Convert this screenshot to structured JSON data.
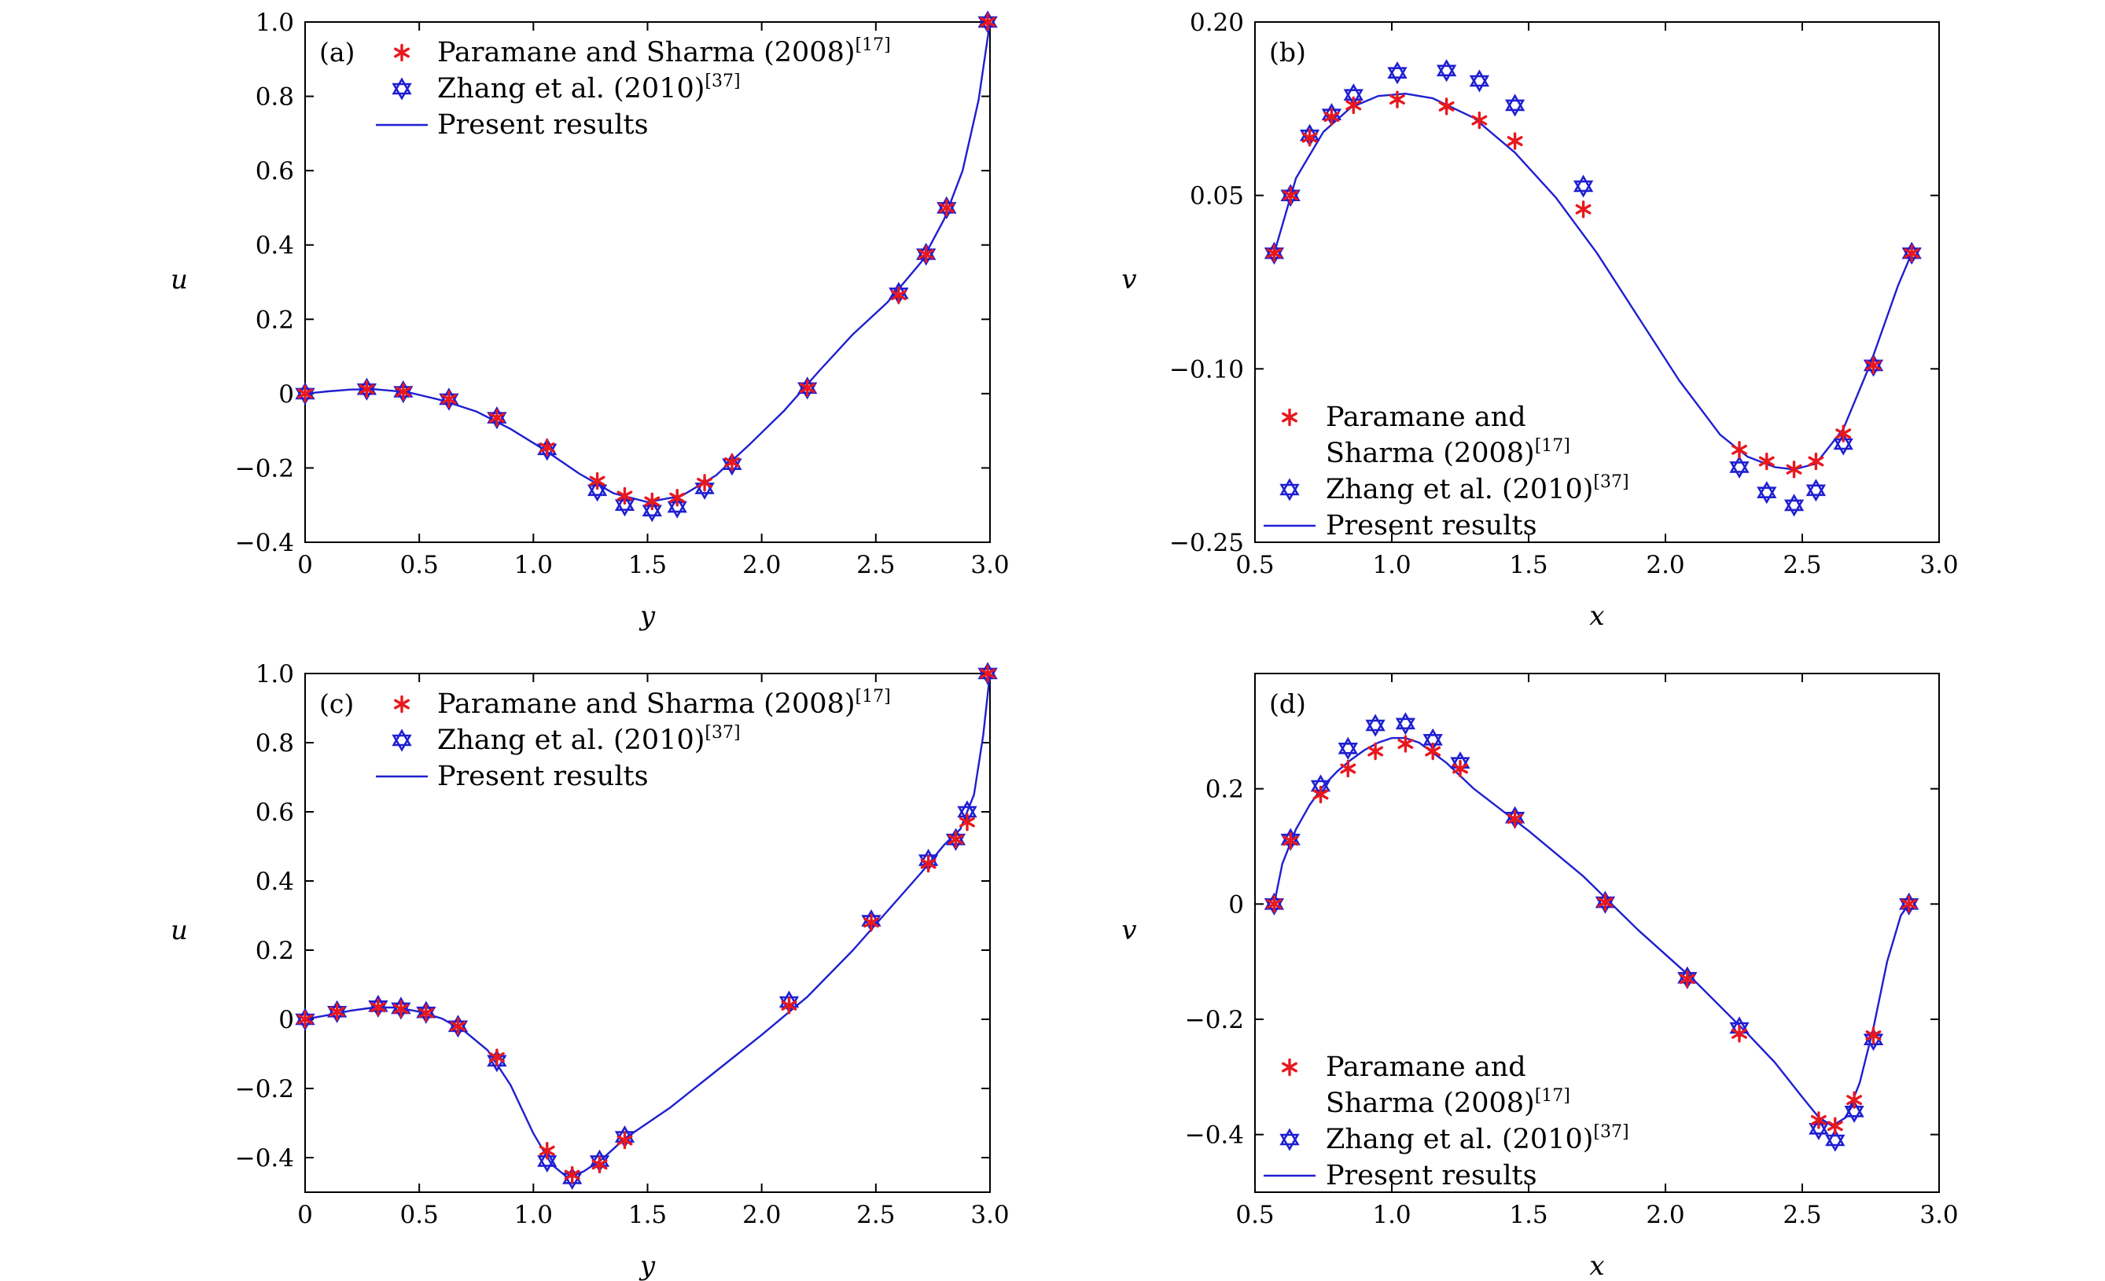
{
  "colors": {
    "line": "#1f1fd1",
    "paramane_marker": "#e8181e",
    "zhang_marker": "#1f1fd1",
    "axis": "#000000"
  },
  "chart_data": [
    {
      "id": "a",
      "panel_label": "(a)",
      "type": "line+scatter",
      "xlabel": "y",
      "ylabel": "u",
      "xlim": [
        0,
        3.0
      ],
      "ylim": [
        -0.4,
        1.0
      ],
      "xticks": [
        0,
        0.5,
        1.0,
        1.5,
        2.0,
        2.5,
        3.0
      ],
      "xtick_labels": [
        "0",
        "0.5",
        "1.0",
        "1.5",
        "2.0",
        "2.5",
        "3.0"
      ],
      "yticks": [
        -0.4,
        -0.2,
        0,
        0.2,
        0.4,
        0.6,
        0.8,
        1.0
      ],
      "ytick_labels": [
        "−0.4",
        "−0.2",
        "0",
        "0.2",
        "0.4",
        "0.6",
        "0.8",
        "1.0"
      ],
      "legend": {
        "position": "top-left",
        "entries": [
          {
            "marker": "asterisk",
            "text_lines": [
              "Paramane and Sharma (2008)"
            ],
            "ref": "[17]"
          },
          {
            "marker": "star",
            "text_lines": [
              "Zhang et al. (2010)"
            ],
            "ref": "[37]"
          },
          {
            "marker": "line",
            "text_lines": [
              "Present results"
            ],
            "ref": ""
          }
        ]
      },
      "series": [
        {
          "name": "Paramane and Sharma (2008)",
          "marker": "asterisk",
          "x": [
            0,
            0.27,
            0.43,
            0.63,
            0.84,
            1.06,
            1.28,
            1.4,
            1.52,
            1.63,
            1.75,
            1.87,
            2.2,
            2.6,
            2.72,
            2.81,
            2.99
          ],
          "y": [
            0,
            0.012,
            0.005,
            -0.015,
            -0.065,
            -0.145,
            -0.235,
            -0.275,
            -0.29,
            -0.28,
            -0.24,
            -0.185,
            0.015,
            0.265,
            0.375,
            0.5,
            1.0
          ]
        },
        {
          "name": "Zhang et al. (2010)",
          "marker": "star",
          "x": [
            0,
            0.27,
            0.43,
            0.63,
            0.84,
            1.06,
            1.28,
            1.4,
            1.52,
            1.63,
            1.75,
            1.87,
            2.2,
            2.6,
            2.72,
            2.81,
            2.99
          ],
          "y": [
            0,
            0.012,
            0.005,
            -0.015,
            -0.065,
            -0.15,
            -0.26,
            -0.3,
            -0.315,
            -0.305,
            -0.255,
            -0.19,
            0.015,
            0.27,
            0.375,
            0.5,
            1.0
          ]
        },
        {
          "name": "Present results",
          "marker": "line",
          "x": [
            0,
            0.1,
            0.2,
            0.3,
            0.45,
            0.6,
            0.75,
            0.9,
            1.05,
            1.2,
            1.35,
            1.5,
            1.65,
            1.8,
            1.95,
            2.1,
            2.25,
            2.4,
            2.55,
            2.7,
            2.8,
            2.88,
            2.95,
            3.0
          ],
          "y": [
            0,
            0.006,
            0.011,
            0.012,
            0.004,
            -0.018,
            -0.048,
            -0.095,
            -0.152,
            -0.215,
            -0.268,
            -0.292,
            -0.275,
            -0.22,
            -0.135,
            -0.045,
            0.06,
            0.16,
            0.245,
            0.355,
            0.47,
            0.6,
            0.79,
            1.0
          ]
        }
      ]
    },
    {
      "id": "b",
      "panel_label": "(b)",
      "type": "line+scatter",
      "xlabel": "x",
      "ylabel": "v",
      "xlim": [
        0.5,
        3.0
      ],
      "ylim": [
        -0.25,
        0.2
      ],
      "xticks": [
        0.5,
        1.0,
        1.5,
        2.0,
        2.5,
        3.0
      ],
      "xtick_labels": [
        "0.5",
        "1.0",
        "1.5",
        "2.0",
        "2.5",
        "3.0"
      ],
      "yticks": [
        -0.25,
        -0.1,
        0.05,
        0.2
      ],
      "ytick_labels": [
        "−0.25",
        "−0.10",
        "0.05",
        "0.20"
      ],
      "legend": {
        "position": "bottom-left",
        "entries": [
          {
            "marker": "asterisk",
            "text_lines": [
              "Paramane and",
              "Sharma (2008)"
            ],
            "ref": "[17]"
          },
          {
            "marker": "star",
            "text_lines": [
              "Zhang et al. (2010)"
            ],
            "ref": "[37]"
          },
          {
            "marker": "line",
            "text_lines": [
              "Present results"
            ],
            "ref": ""
          }
        ]
      },
      "series": [
        {
          "name": "Paramane and Sharma (2008)",
          "marker": "asterisk",
          "x": [
            0.57,
            0.63,
            0.7,
            0.78,
            0.86,
            1.02,
            1.2,
            1.32,
            1.45,
            1.7,
            2.27,
            2.37,
            2.47,
            2.55,
            2.65,
            2.76,
            2.9
          ],
          "y": [
            0.0,
            0.05,
            0.1,
            0.118,
            0.128,
            0.133,
            0.127,
            0.115,
            0.097,
            0.038,
            -0.17,
            -0.18,
            -0.187,
            -0.18,
            -0.156,
            -0.097,
            0.0
          ]
        },
        {
          "name": "Zhang et al. (2010)",
          "marker": "star",
          "x": [
            0.57,
            0.63,
            0.7,
            0.78,
            0.86,
            1.02,
            1.2,
            1.32,
            1.45,
            1.7,
            2.27,
            2.37,
            2.47,
            2.55,
            2.65,
            2.76,
            2.9
          ],
          "y": [
            0.0,
            0.05,
            0.102,
            0.12,
            0.137,
            0.156,
            0.158,
            0.149,
            0.128,
            0.058,
            -0.185,
            -0.207,
            -0.218,
            -0.205,
            -0.165,
            -0.097,
            0.0
          ]
        },
        {
          "name": "Present results",
          "marker": "line",
          "x": [
            0.57,
            0.65,
            0.75,
            0.85,
            0.95,
            1.05,
            1.15,
            1.3,
            1.45,
            1.6,
            1.75,
            1.9,
            2.05,
            2.2,
            2.3,
            2.4,
            2.47,
            2.55,
            2.65,
            2.75,
            2.85,
            2.9
          ],
          "y": [
            0.0,
            0.065,
            0.105,
            0.126,
            0.136,
            0.138,
            0.134,
            0.117,
            0.087,
            0.048,
            0.0,
            -0.055,
            -0.11,
            -0.157,
            -0.176,
            -0.185,
            -0.187,
            -0.182,
            -0.152,
            -0.095,
            -0.028,
            0.0
          ]
        }
      ]
    },
    {
      "id": "c",
      "panel_label": "(c)",
      "type": "line+scatter",
      "xlabel": "y",
      "ylabel": "u",
      "xlim": [
        0,
        3.0
      ],
      "ylim": [
        -0.5,
        1.0
      ],
      "xticks": [
        0,
        0.5,
        1.0,
        1.5,
        2.0,
        2.5,
        3.0
      ],
      "xtick_labels": [
        "0",
        "0.5",
        "1.0",
        "1.5",
        "2.0",
        "2.5",
        "3.0"
      ],
      "yticks": [
        -0.4,
        -0.2,
        0,
        0.2,
        0.4,
        0.6,
        0.8,
        1.0
      ],
      "ytick_labels": [
        "−0.4",
        "−0.2",
        "0",
        "0.2",
        "0.4",
        "0.6",
        "0.8",
        "1.0"
      ],
      "legend": {
        "position": "top-left",
        "entries": [
          {
            "marker": "asterisk",
            "text_lines": [
              "Paramane and Sharma (2008)"
            ],
            "ref": "[17]"
          },
          {
            "marker": "star",
            "text_lines": [
              "Zhang et al. (2010)"
            ],
            "ref": "[37]"
          },
          {
            "marker": "line",
            "text_lines": [
              "Present results"
            ],
            "ref": ""
          }
        ]
      },
      "series": [
        {
          "name": "Paramane and Sharma (2008)",
          "marker": "asterisk",
          "x": [
            0,
            0.14,
            0.32,
            0.42,
            0.53,
            0.67,
            0.84,
            1.06,
            1.17,
            1.29,
            1.4,
            2.12,
            2.48,
            2.73,
            2.85,
            2.9,
            2.99
          ],
          "y": [
            0,
            0.022,
            0.035,
            0.03,
            0.018,
            -0.02,
            -0.11,
            -0.38,
            -0.45,
            -0.42,
            -0.35,
            0.04,
            0.28,
            0.45,
            0.52,
            0.57,
            1.0
          ]
        },
        {
          "name": "Zhang et al. (2010)",
          "marker": "star",
          "x": [
            0,
            0.14,
            0.32,
            0.42,
            0.53,
            0.67,
            0.84,
            1.06,
            1.17,
            1.29,
            1.4,
            2.12,
            2.48,
            2.73,
            2.85,
            2.9,
            2.99
          ],
          "y": [
            0,
            0.022,
            0.038,
            0.032,
            0.02,
            -0.02,
            -0.12,
            -0.41,
            -0.46,
            -0.41,
            -0.34,
            0.05,
            0.285,
            0.46,
            0.52,
            0.6,
            1.0
          ]
        },
        {
          "name": "Present results",
          "marker": "line",
          "x": [
            0,
            0.1,
            0.2,
            0.3,
            0.4,
            0.5,
            0.6,
            0.7,
            0.8,
            0.9,
            1.0,
            1.08,
            1.15,
            1.22,
            1.3,
            1.4,
            1.6,
            1.8,
            2.0,
            2.2,
            2.4,
            2.6,
            2.7,
            2.8,
            2.87,
            2.93,
            2.97,
            3.0
          ],
          "y": [
            0,
            0.012,
            0.025,
            0.034,
            0.034,
            0.022,
            0.002,
            -0.035,
            -0.09,
            -0.19,
            -0.33,
            -0.42,
            -0.458,
            -0.44,
            -0.405,
            -0.345,
            -0.255,
            -0.15,
            -0.045,
            0.065,
            0.2,
            0.35,
            0.425,
            0.505,
            0.55,
            0.65,
            0.82,
            1.0
          ]
        }
      ]
    },
    {
      "id": "d",
      "panel_label": "(d)",
      "type": "line+scatter",
      "xlabel": "x",
      "ylabel": "v",
      "xlim": [
        0.5,
        3.0
      ],
      "ylim": [
        -0.5,
        0.4
      ],
      "xticks": [
        0.5,
        1.0,
        1.5,
        2.0,
        2.5,
        3.0
      ],
      "xtick_labels": [
        "0.5",
        "1.0",
        "1.5",
        "2.0",
        "2.5",
        "3.0"
      ],
      "yticks": [
        -0.4,
        -0.2,
        0,
        0.2
      ],
      "ytick_labels": [
        "−0.4",
        "−0.2",
        "0",
        "0.2"
      ],
      "legend": {
        "position": "bottom-left",
        "entries": [
          {
            "marker": "asterisk",
            "text_lines": [
              "Paramane and",
              "Sharma (2008)"
            ],
            "ref": "[17]"
          },
          {
            "marker": "star",
            "text_lines": [
              "Zhang et al. (2010)"
            ],
            "ref": "[37]"
          },
          {
            "marker": "line",
            "text_lines": [
              "Present results"
            ],
            "ref": ""
          }
        ]
      },
      "series": [
        {
          "name": "Paramane and Sharma (2008)",
          "marker": "asterisk",
          "x": [
            0.57,
            0.63,
            0.74,
            0.84,
            0.94,
            1.05,
            1.15,
            1.25,
            1.45,
            1.78,
            2.08,
            2.27,
            2.56,
            2.62,
            2.69,
            2.76,
            2.89
          ],
          "y": [
            0,
            0.11,
            0.19,
            0.235,
            0.265,
            0.278,
            0.265,
            0.235,
            0.148,
            0.003,
            -0.13,
            -0.225,
            -0.375,
            -0.385,
            -0.34,
            -0.228,
            0
          ]
        },
        {
          "name": "Zhang et al. (2010)",
          "marker": "star",
          "x": [
            0.57,
            0.63,
            0.74,
            0.84,
            0.94,
            1.05,
            1.15,
            1.25,
            1.45,
            1.78,
            2.08,
            2.27,
            2.56,
            2.62,
            2.69,
            2.76,
            2.89
          ],
          "y": [
            0,
            0.112,
            0.205,
            0.27,
            0.31,
            0.313,
            0.285,
            0.245,
            0.15,
            0.003,
            -0.128,
            -0.215,
            -0.39,
            -0.41,
            -0.36,
            -0.235,
            0
          ]
        },
        {
          "name": "Present results",
          "marker": "line",
          "x": [
            0.57,
            0.6,
            0.65,
            0.7,
            0.75,
            0.8,
            0.85,
            0.9,
            0.95,
            1.0,
            1.05,
            1.1,
            1.2,
            1.3,
            1.5,
            1.7,
            1.9,
            2.1,
            2.3,
            2.4,
            2.5,
            2.56,
            2.61,
            2.66,
            2.71,
            2.76,
            2.81,
            2.86,
            2.89
          ],
          "y": [
            0,
            0.07,
            0.13,
            0.172,
            0.205,
            0.23,
            0.25,
            0.267,
            0.28,
            0.288,
            0.288,
            0.28,
            0.245,
            0.2,
            0.127,
            0.048,
            -0.045,
            -0.13,
            -0.225,
            -0.275,
            -0.335,
            -0.37,
            -0.385,
            -0.37,
            -0.31,
            -0.215,
            -0.1,
            -0.02,
            0
          ]
        }
      ]
    }
  ]
}
